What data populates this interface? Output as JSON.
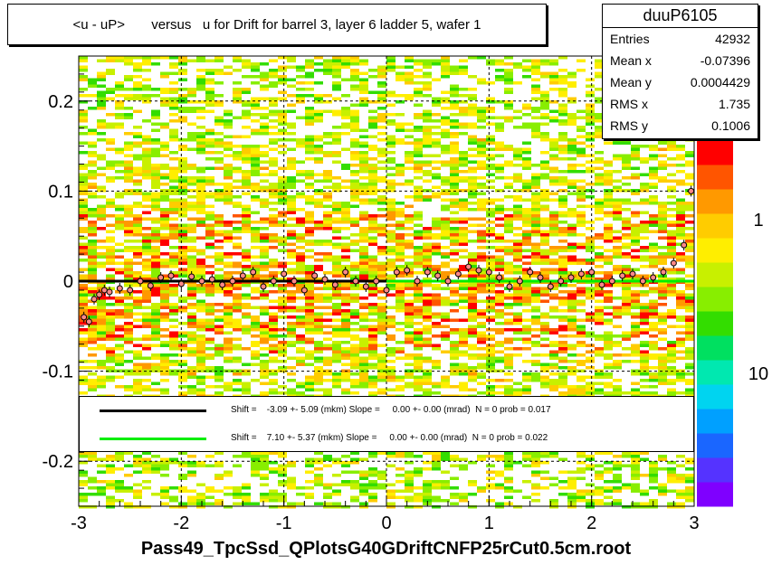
{
  "chart_data": {
    "type": "heatmap",
    "title": "<u - uP>       versus   u for Drift for barrel 3, layer 6 ladder 5, wafer 1",
    "xlabel": "Pass49_TpcSsd_QPlotsG40GDriftCNFP25rCut0.5cm.root",
    "ylabel": "",
    "xlim": [
      -3,
      3
    ],
    "ylim": [
      -0.25,
      0.25
    ],
    "x_ticks": [
      "-3",
      "-2",
      "-1",
      "0",
      "1",
      "2",
      "3"
    ],
    "y_ticks": [
      "-0.2",
      "-0.1",
      "0",
      "0.1",
      "0.2"
    ],
    "z_ticks": [
      "1",
      "10"
    ],
    "z_scale": "log",
    "grid": true,
    "stats": {
      "name": "duuP6105",
      "rows": [
        {
          "label": "Entries",
          "value": "42932"
        },
        {
          "label": "Mean x",
          "value": "-0.07396"
        },
        {
          "label": "Mean y",
          "value": "0.0004429"
        },
        {
          "label": "RMS x",
          "value": "1.735"
        },
        {
          "label": "RMS y",
          "value": "0.1006"
        }
      ]
    },
    "fits": [
      {
        "color": "#000000",
        "x_range": [
          -3,
          0
        ],
        "y": 0.0,
        "label": "Shift =    -3.09 +- 5.09 (mkm) Slope =     0.00 +- 0.00 (mrad)  N = 0 prob = 0.017"
      },
      {
        "color": "#00ee00",
        "x_range": [
          0,
          3
        ],
        "y": 0.0,
        "label": "Shift =    7.10 +- 5.37 (mkm) Slope =     0.00 +- 0.00 (mrad)  N = 0 prob = 0.022"
      }
    ],
    "profile_points": {
      "x": [
        -2.95,
        -2.9,
        -2.85,
        -2.8,
        -2.75,
        -2.7,
        -2.6,
        -2.5,
        -2.4,
        -2.3,
        -2.2,
        -2.1,
        -2.0,
        -1.9,
        -1.8,
        -1.7,
        -1.6,
        -1.5,
        -1.4,
        -1.3,
        -1.2,
        -1.1,
        -1.0,
        -0.9,
        -0.8,
        -0.7,
        -0.6,
        -0.5,
        -0.4,
        -0.3,
        -0.2,
        -0.1,
        0.0,
        0.1,
        0.2,
        0.3,
        0.4,
        0.5,
        0.6,
        0.7,
        0.8,
        0.9,
        1.0,
        1.1,
        1.2,
        1.3,
        1.4,
        1.5,
        1.6,
        1.7,
        1.8,
        1.9,
        2.0,
        2.1,
        2.2,
        2.3,
        2.4,
        2.5,
        2.6,
        2.7,
        2.8,
        2.9,
        2.97
      ],
      "y": [
        -0.04,
        -0.045,
        -0.02,
        -0.015,
        -0.01,
        -0.012,
        -0.008,
        -0.01,
        0.0,
        -0.005,
        0.004,
        0.006,
        -0.003,
        0.005,
        0.0,
        0.002,
        -0.004,
        0.0,
        0.006,
        0.01,
        -0.006,
        0.0,
        0.008,
        0.0,
        -0.01,
        0.006,
        0.002,
        -0.004,
        0.01,
        0.0,
        -0.006,
        0.0,
        -0.01,
        0.01,
        0.012,
        0.0,
        0.01,
        0.006,
        0.0,
        0.008,
        0.016,
        0.012,
        0.01,
        0.004,
        -0.006,
        0.0,
        0.01,
        0.004,
        -0.006,
        0.0,
        0.004,
        0.008,
        0.01,
        -0.004,
        0.0,
        0.006,
        0.008,
        0.0,
        0.004,
        0.01,
        0.02,
        0.04,
        0.1
      ]
    },
    "colors": {
      "palette": [
        "#7f00ff",
        "#5533ff",
        "#1a66ff",
        "#00a0ff",
        "#00d4f0",
        "#00e8b0",
        "#00e060",
        "#33dd00",
        "#88ee00",
        "#c8f000",
        "#ffee00",
        "#ffcc00",
        "#ff9900",
        "#ff5500",
        "#ff0000"
      ]
    }
  }
}
